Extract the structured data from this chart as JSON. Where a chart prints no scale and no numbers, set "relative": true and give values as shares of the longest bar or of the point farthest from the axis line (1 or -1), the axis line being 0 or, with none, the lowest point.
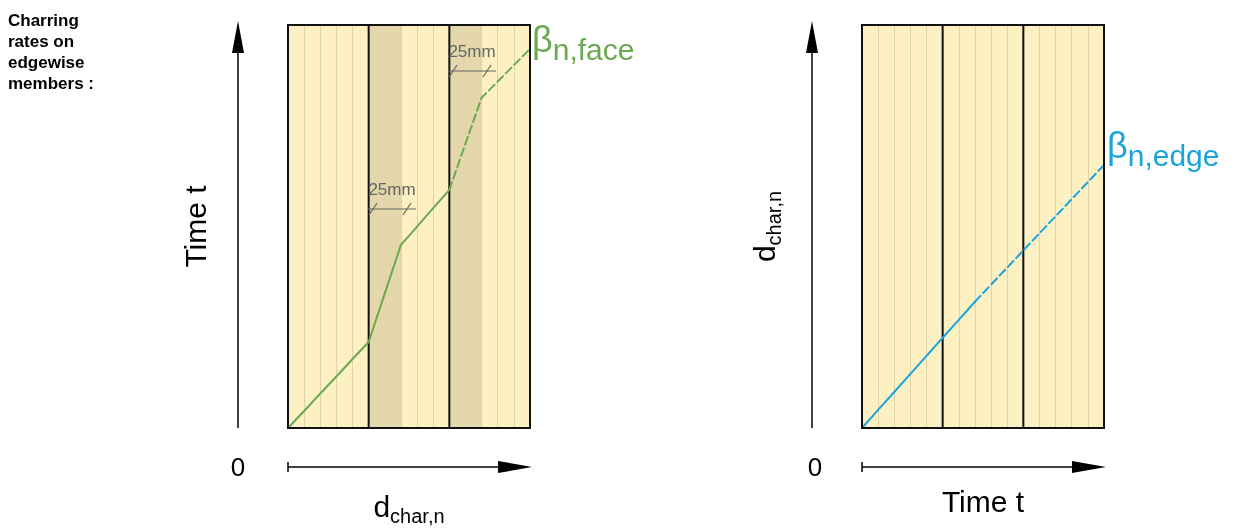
{
  "chart_data": [
    {
      "type": "other",
      "title": "Charring rates on edgewise members :"
    },
    {
      "type": "line",
      "xlabel": "d$_{char,n}$",
      "ylabel": "Time t",
      "relative": true,
      "marker": "none",
      "categories": [
        null,
        null,
        null,
        null,
        null,
        null,
        null,
        null,
        null,
        null,
        null,
        null,
        null,
        null,
        null,
        null
      ],
      "series": [
        {
          "color": "#6aaa50",
          "line_style": "solid",
          "values": [
            0,
            0.045,
            0.091,
            0.136,
            0.182,
            0.227,
            0.355,
            0.483,
            0.531,
            0.58,
            0.628,
            null,
            null,
            null,
            null,
            null
          ]
        },
        {
          "color": "#6aaa50",
          "line_style": "dashed",
          "values": [
            null,
            null,
            null,
            null,
            null,
            null,
            null,
            null,
            null,
            null,
            0.628,
            0.75,
            0.871,
            0.914,
            0.957,
            1
          ]
        }
      ],
      "grid": "x",
      "annotations": [
        "β$_{n,face}$",
        "0",
        "25mm",
        "25mm"
      ]
    },
    {
      "type": "line",
      "xlabel": "Time t",
      "ylabel": "d$_{char,n}$",
      "relative": true,
      "marker": "none",
      "categories": [
        null,
        null,
        null,
        null,
        null,
        null,
        null,
        null,
        null,
        null,
        null,
        null,
        null,
        null,
        null,
        null
      ],
      "series": [
        {
          "color": "#1ba3dc",
          "line_style": "solid",
          "values": [
            0,
            0.069,
            0.137,
            0.206,
            0.274,
            0.343,
            0.411,
            0.48,
            null,
            null,
            null,
            null,
            null,
            null,
            null,
            null
          ]
        },
        {
          "color": "#1ba3dc",
          "line_style": "dashed",
          "values": [
            null,
            null,
            null,
            null,
            null,
            null,
            null,
            0.48,
            0.545,
            0.61,
            0.675,
            0.74,
            0.805,
            0.87,
            0.935,
            1
          ]
        }
      ],
      "grid": "x",
      "annotations": [
        "β$_{n,edge}$",
        "0"
      ]
    }
  ]
}
